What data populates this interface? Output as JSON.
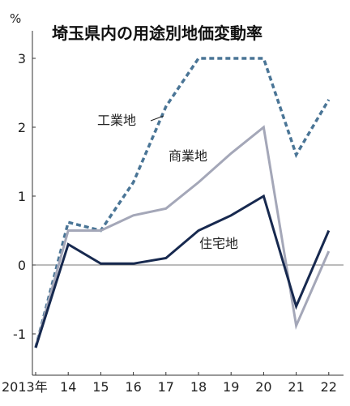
{
  "chart_data": {
    "type": "line",
    "title": "埼玉県内の用途別地価変動率",
    "y_unit": "%",
    "x": [
      "2013年",
      "14",
      "15",
      "16",
      "17",
      "18",
      "19",
      "20",
      "21",
      "22"
    ],
    "ylim": [
      -1.6,
      3.4
    ],
    "yticks": [
      3,
      2,
      1,
      0,
      -1
    ],
    "grid": false,
    "legend": "inline labels",
    "series": [
      {
        "name": "工業地",
        "values": [
          -1.2,
          0.62,
          0.5,
          1.2,
          2.3,
          3.0,
          3.0,
          3.0,
          1.6,
          2.4
        ],
        "color": "#4a7596",
        "style": "dashed"
      },
      {
        "name": "商業地",
        "values": [
          -1.2,
          0.5,
          0.5,
          0.72,
          0.82,
          1.2,
          1.62,
          2.0,
          -0.88,
          0.2
        ],
        "color": "#a4a7b8",
        "style": "solid"
      },
      {
        "name": "住宅地",
        "values": [
          -1.2,
          0.3,
          0.02,
          0.02,
          0.1,
          0.5,
          0.72,
          1.0,
          -0.6,
          0.5
        ],
        "color": "#17294f",
        "style": "solid"
      }
    ]
  }
}
